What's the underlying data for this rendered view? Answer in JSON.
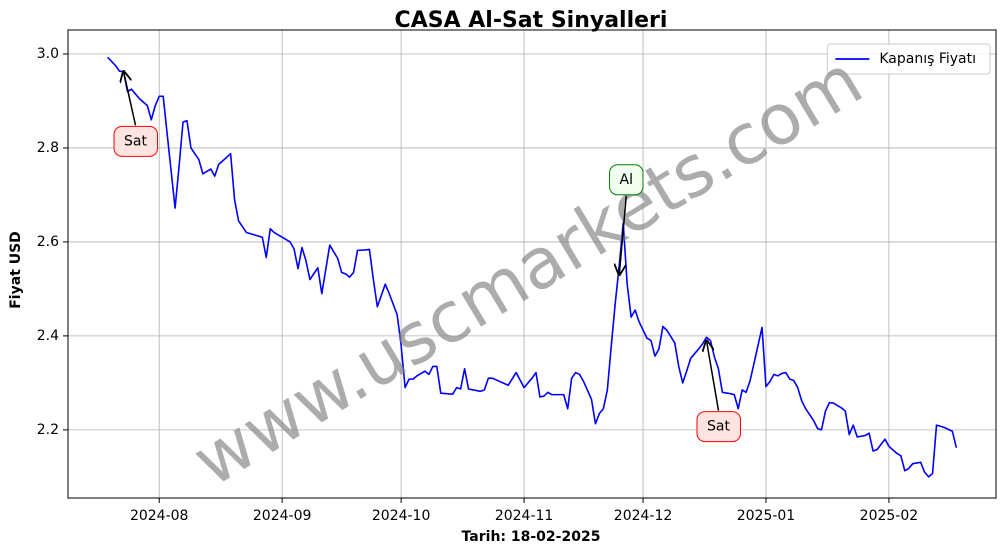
{
  "chart_data": {
    "type": "line",
    "title": "CASA Al-Sat Sinyalleri",
    "xlabel": "Tarih: 18-02-2025",
    "ylabel": "Fiyat USD",
    "watermark": "www.uscmarkets.com",
    "grid": true,
    "legend": "upper right",
    "xlim": [
      "2024-07-09",
      "2025-02-28"
    ],
    "ylim": [
      2.055,
      3.051
    ],
    "xticks": [
      {
        "value": "2024-08-01",
        "label": "2024-08"
      },
      {
        "value": "2024-09-01",
        "label": "2024-09"
      },
      {
        "value": "2024-10-01",
        "label": "2024-10"
      },
      {
        "value": "2024-11-01",
        "label": "2024-11"
      },
      {
        "value": "2024-12-01",
        "label": "2024-12"
      },
      {
        "value": "2025-01-01",
        "label": "2025-01"
      },
      {
        "value": "2025-02-01",
        "label": "2025-02"
      }
    ],
    "yticks": [
      2.2,
      2.4,
      2.6,
      2.8,
      {
        "value": 3,
        "label": "3.0"
      }
    ],
    "x": [
      "2024-07-19",
      "2024-07-21",
      "2024-07-22",
      "2024-07-23",
      "2024-07-24",
      "2024-07-25",
      "2024-07-27",
      "2024-07-29",
      "2024-07-30",
      "2024-07-31",
      "2024-08-01",
      "2024-08-02",
      "2024-08-03",
      "2024-08-05",
      "2024-08-06",
      "2024-08-07",
      "2024-08-08",
      "2024-08-09",
      "2024-08-11",
      "2024-08-12",
      "2024-08-14",
      "2024-08-15",
      "2024-08-16",
      "2024-08-18",
      "2024-08-19",
      "2024-08-20",
      "2024-08-21",
      "2024-08-23",
      "2024-08-25",
      "2024-08-27",
      "2024-08-28",
      "2024-08-29",
      "2024-08-30",
      "2024-09-01",
      "2024-09-03",
      "2024-09-04",
      "2024-09-05",
      "2024-09-06",
      "2024-09-07",
      "2024-09-08",
      "2024-09-10",
      "2024-09-11",
      "2024-09-13",
      "2024-09-15",
      "2024-09-16",
      "2024-09-17",
      "2024-09-18",
      "2024-09-19",
      "2024-09-20",
      "2024-09-22",
      "2024-09-23",
      "2024-09-24",
      "2024-09-25",
      "2024-09-27",
      "2024-09-28",
      "2024-09-30",
      "2024-10-01",
      "2024-10-02",
      "2024-10-03",
      "2024-10-04",
      "2024-10-05",
      "2024-10-07",
      "2024-10-08",
      "2024-10-09",
      "2024-10-10",
      "2024-10-11",
      "2024-10-14",
      "2024-10-15",
      "2024-10-16",
      "2024-10-17",
      "2024-10-18",
      "2024-10-21",
      "2024-10-22",
      "2024-10-23",
      "2024-10-24",
      "2024-10-28",
      "2024-10-30",
      "2024-11-01",
      "2024-11-03",
      "2024-11-04",
      "2024-11-05",
      "2024-11-06",
      "2024-11-07",
      "2024-11-08",
      "2024-11-11",
      "2024-11-12",
      "2024-11-13",
      "2024-11-14",
      "2024-11-15",
      "2024-11-16",
      "2024-11-18",
      "2024-11-19",
      "2024-11-20",
      "2024-11-21",
      "2024-11-22",
      "2024-11-23",
      "2024-11-24",
      "2024-11-25",
      "2024-11-26",
      "2024-11-27",
      "2024-11-28",
      "2024-11-29",
      "2024-11-30",
      "2024-12-02",
      "2024-12-03",
      "2024-12-04",
      "2024-12-05",
      "2024-12-06",
      "2024-12-07",
      "2024-12-09",
      "2024-12-10",
      "2024-12-11",
      "2024-12-12",
      "2024-12-13",
      "2024-12-15",
      "2024-12-16",
      "2024-12-17",
      "2024-12-18",
      "2024-12-19",
      "2024-12-20",
      "2024-12-21",
      "2024-12-23",
      "2024-12-24",
      "2024-12-25",
      "2024-12-26",
      "2024-12-27",
      "2024-12-28",
      "2024-12-30",
      "2024-12-31",
      "2025-01-01",
      "2025-01-02",
      "2025-01-03",
      "2025-01-04",
      "2025-01-05",
      "2025-01-06",
      "2025-01-07",
      "2025-01-08",
      "2025-01-09",
      "2025-01-10",
      "2025-01-11",
      "2025-01-13",
      "2025-01-14",
      "2025-01-15",
      "2025-01-16",
      "2025-01-17",
      "2025-01-18",
      "2025-01-20",
      "2025-01-21",
      "2025-01-22",
      "2025-01-23",
      "2025-01-24",
      "2025-01-26",
      "2025-01-27",
      "2025-01-28",
      "2025-01-29",
      "2025-01-31",
      "2025-02-01",
      "2025-02-03",
      "2025-02-04",
      "2025-02-05",
      "2025-02-06",
      "2025-02-07",
      "2025-02-09",
      "2025-02-10",
      "2025-02-11",
      "2025-02-12",
      "2025-02-13",
      "2025-02-15",
      "2025-02-17",
      "2025-02-18"
    ],
    "series": [
      {
        "name": "Kapanış Fiyatı",
        "color": "#0000ff",
        "values": [
          2.993,
          2.975,
          2.963,
          2.963,
          2.92,
          2.925,
          2.905,
          2.89,
          2.86,
          2.89,
          2.91,
          2.91,
          2.83,
          2.672,
          2.76,
          2.855,
          2.858,
          2.8,
          2.775,
          2.745,
          2.755,
          2.74,
          2.765,
          2.78,
          2.788,
          2.69,
          2.645,
          2.62,
          2.615,
          2.61,
          2.567,
          2.628,
          2.62,
          2.61,
          2.6,
          2.585,
          2.543,
          2.588,
          2.56,
          2.52,
          2.545,
          2.49,
          2.593,
          2.565,
          2.535,
          2.532,
          2.525,
          2.535,
          2.582,
          2.583,
          2.584,
          2.52,
          2.462,
          2.51,
          2.49,
          2.445,
          2.38,
          2.29,
          2.308,
          2.308,
          2.315,
          2.325,
          2.318,
          2.335,
          2.335,
          2.278,
          2.276,
          2.29,
          2.287,
          2.33,
          2.287,
          2.282,
          2.285,
          2.31,
          2.31,
          2.295,
          2.322,
          2.29,
          2.31,
          2.322,
          2.27,
          2.272,
          2.28,
          2.275,
          2.275,
          2.245,
          2.31,
          2.322,
          2.318,
          2.303,
          2.265,
          2.213,
          2.235,
          2.245,
          2.285,
          2.38,
          2.47,
          2.55,
          2.64,
          2.51,
          2.44,
          2.455,
          2.43,
          2.395,
          2.39,
          2.357,
          2.372,
          2.42,
          2.412,
          2.385,
          2.335,
          2.3,
          2.325,
          2.352,
          2.372,
          2.383,
          2.397,
          2.39,
          2.355,
          2.33,
          2.28,
          2.277,
          2.275,
          2.245,
          2.285,
          2.28,
          2.305,
          2.38,
          2.418,
          2.292,
          2.303,
          2.318,
          2.315,
          2.32,
          2.322,
          2.308,
          2.305,
          2.29,
          2.262,
          2.245,
          2.22,
          2.203,
          2.2,
          2.24,
          2.258,
          2.257,
          2.247,
          2.24,
          2.19,
          2.21,
          2.185,
          2.188,
          2.193,
          2.155,
          2.158,
          2.18,
          2.165,
          2.15,
          2.145,
          2.113,
          2.118,
          2.128,
          2.131,
          2.11,
          2.1,
          2.107,
          2.21,
          2.205,
          2.197,
          2.162
        ]
      }
    ],
    "annotations": [
      {
        "text": "Sat",
        "x": "2024-07-23",
        "y": 2.963,
        "color": "red",
        "facecolor": "#ffe4e1"
      },
      {
        "text": "Al",
        "x": "2024-11-25",
        "y": 2.53,
        "color": "green",
        "facecolor": "#f0fff0"
      },
      {
        "text": "Sat",
        "x": "2024-12-17",
        "y": 2.39,
        "color": "red",
        "facecolor": "#ffe4e1"
      }
    ]
  }
}
